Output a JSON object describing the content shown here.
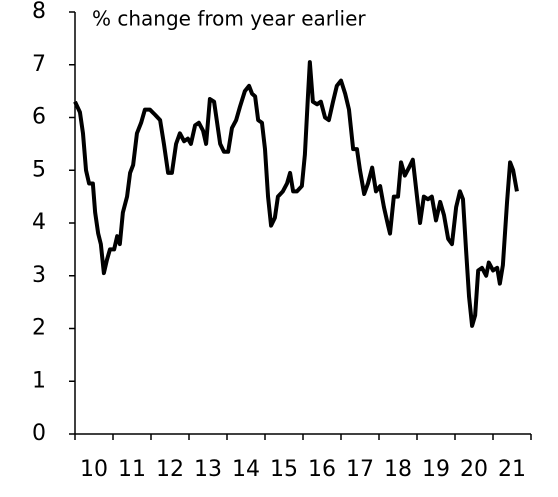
{
  "chart_data": {
    "type": "line",
    "title": "% change from year earlier",
    "xlim": [
      2010,
      2022
    ],
    "xticks": [
      {
        "value": 2010,
        "label": "10"
      },
      {
        "value": 2011,
        "label": "11"
      },
      {
        "value": 2012,
        "label": "12"
      },
      {
        "value": 2013,
        "label": "13"
      },
      {
        "value": 2014,
        "label": "14"
      },
      {
        "value": 2015,
        "label": "15"
      },
      {
        "value": 2016,
        "label": "16"
      },
      {
        "value": 2017,
        "label": "17"
      },
      {
        "value": 2018,
        "label": "18"
      },
      {
        "value": 2019,
        "label": "19"
      },
      {
        "value": 2020,
        "label": "20"
      },
      {
        "value": 2021,
        "label": "21"
      }
    ],
    "ylim": [
      0,
      8
    ],
    "yticks": [
      0,
      1,
      2,
      3,
      4,
      5,
      6,
      7,
      8
    ],
    "series": [
      {
        "color": "#000000",
        "x": [
          2010.0,
          2010.13,
          2010.21,
          2010.29,
          2010.37,
          2010.47,
          2010.53,
          2010.61,
          2010.68,
          2010.76,
          2010.84,
          2010.92,
          2011.03,
          2011.11,
          2011.18,
          2011.26,
          2011.37,
          2011.45,
          2011.53,
          2011.63,
          2011.74,
          2011.84,
          2011.97,
          2012.11,
          2012.24,
          2012.34,
          2012.45,
          2012.55,
          2012.66,
          2012.76,
          2012.87,
          2012.97,
          2013.05,
          2013.16,
          2013.26,
          2013.37,
          2013.45,
          2013.55,
          2013.66,
          2013.74,
          2013.82,
          2013.92,
          2014.03,
          2014.13,
          2014.24,
          2014.34,
          2014.47,
          2014.58,
          2014.66,
          2014.74,
          2014.82,
          2014.92,
          2015.0,
          2015.08,
          2015.16,
          2015.26,
          2015.34,
          2015.47,
          2015.58,
          2015.66,
          2015.74,
          2015.84,
          2015.97,
          2016.05,
          2016.13,
          2016.18,
          2016.26,
          2016.37,
          2016.47,
          2016.58,
          2016.68,
          2016.79,
          2016.89,
          2017.0,
          2017.11,
          2017.21,
          2017.32,
          2017.42,
          2017.5,
          2017.61,
          2017.71,
          2017.82,
          2017.92,
          2018.03,
          2018.13,
          2018.24,
          2018.29,
          2018.39,
          2018.5,
          2018.58,
          2018.68,
          2018.79,
          2018.89,
          2019.0,
          2019.08,
          2019.18,
          2019.29,
          2019.39,
          2019.5,
          2019.61,
          2019.71,
          2019.82,
          2019.92,
          2020.03,
          2020.13,
          2020.21,
          2020.29,
          2020.37,
          2020.45,
          2020.53,
          2020.61,
          2020.71,
          2020.82,
          2020.89,
          2021.0,
          2021.11,
          2021.18,
          2021.26,
          2021.37,
          2021.45,
          2021.53,
          2021.63
        ],
        "values": [
          6.3,
          6.1,
          5.7,
          5.0,
          4.75,
          4.75,
          4.2,
          3.8,
          3.6,
          3.05,
          3.3,
          3.5,
          3.5,
          3.75,
          3.6,
          4.2,
          4.5,
          4.95,
          5.1,
          5.7,
          5.9,
          6.15,
          6.15,
          6.05,
          5.95,
          5.5,
          4.95,
          4.95,
          5.5,
          5.7,
          5.55,
          5.6,
          5.5,
          5.85,
          5.9,
          5.75,
          5.5,
          6.35,
          6.3,
          5.9,
          5.5,
          5.35,
          5.35,
          5.8,
          5.95,
          6.2,
          6.5,
          6.6,
          6.45,
          6.4,
          5.95,
          5.9,
          5.4,
          4.5,
          3.95,
          4.1,
          4.5,
          4.6,
          4.75,
          4.95,
          4.6,
          4.6,
          4.7,
          5.3,
          6.4,
          7.05,
          6.3,
          6.25,
          6.3,
          6.0,
          5.95,
          6.3,
          6.6,
          6.7,
          6.45,
          6.15,
          5.4,
          5.4,
          5.0,
          4.55,
          4.75,
          5.05,
          4.6,
          4.7,
          4.3,
          3.95,
          3.8,
          4.5,
          4.5,
          5.15,
          4.9,
          5.05,
          5.2,
          4.5,
          4.0,
          4.5,
          4.45,
          4.5,
          4.05,
          4.4,
          4.15,
          3.7,
          3.6,
          4.3,
          4.6,
          4.45,
          3.5,
          2.6,
          2.05,
          2.25,
          3.1,
          3.15,
          3.0,
          3.25,
          3.1,
          3.15,
          2.85,
          3.2,
          4.4,
          5.15,
          5.0,
          4.6
        ]
      }
    ]
  }
}
